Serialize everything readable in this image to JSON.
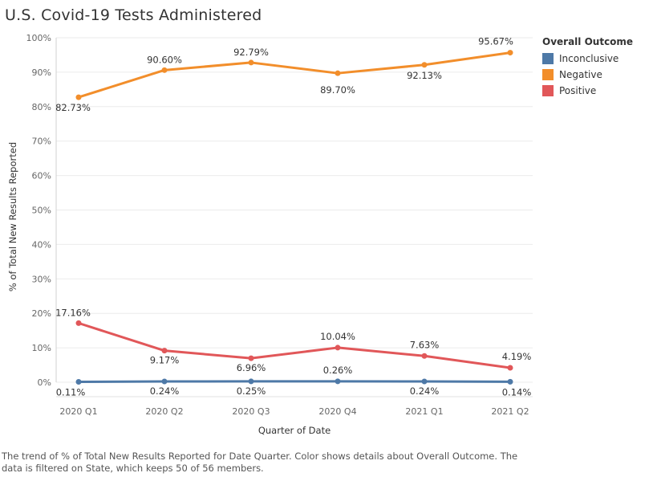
{
  "title": "U.S. Covid-19 Tests Administered",
  "footer": "The trend of % of Total New Results Reported for Date Quarter.  Color shows details about Overall Outcome. The data is filtered on State, which keeps 50 of 56 members.",
  "legend": {
    "title": "Overall Outcome",
    "items": [
      {
        "label": "Inconclusive",
        "color": "#4e79a7"
      },
      {
        "label": "Negative",
        "color": "#f28e2b"
      },
      {
        "label": "Positive",
        "color": "#e15759"
      }
    ]
  },
  "chart_data": {
    "type": "line",
    "xlabel": "Quarter of Date",
    "ylabel": "% of Total New Results Reported",
    "categories": [
      "2020 Q1",
      "2020 Q2",
      "2020 Q3",
      "2020 Q4",
      "2021 Q1",
      "2021 Q2"
    ],
    "ylim": [
      0,
      100
    ],
    "yticks": [
      "0%",
      "10%",
      "20%",
      "30%",
      "40%",
      "50%",
      "60%",
      "70%",
      "80%",
      "90%",
      "100%"
    ],
    "grid": true,
    "legend_position": "right",
    "series": [
      {
        "name": "Negative",
        "color": "#f28e2b",
        "values": [
          82.73,
          90.6,
          92.79,
          89.7,
          92.13,
          95.67
        ],
        "labels": [
          "82.73%",
          "90.60%",
          "92.79%",
          "89.70%",
          "92.13%",
          "95.67%"
        ]
      },
      {
        "name": "Positive",
        "color": "#e15759",
        "values": [
          17.16,
          9.17,
          6.96,
          10.04,
          7.63,
          4.19
        ],
        "labels": [
          "17.16%",
          "9.17%",
          "6.96%",
          "10.04%",
          "7.63%",
          "4.19%"
        ]
      },
      {
        "name": "Inconclusive",
        "color": "#4e79a7",
        "values": [
          0.11,
          0.24,
          0.25,
          0.26,
          0.24,
          0.14
        ],
        "labels": [
          "0.11%",
          "0.24%",
          "0.25%",
          "0.26%",
          "0.24%",
          "0.14%"
        ]
      }
    ]
  }
}
